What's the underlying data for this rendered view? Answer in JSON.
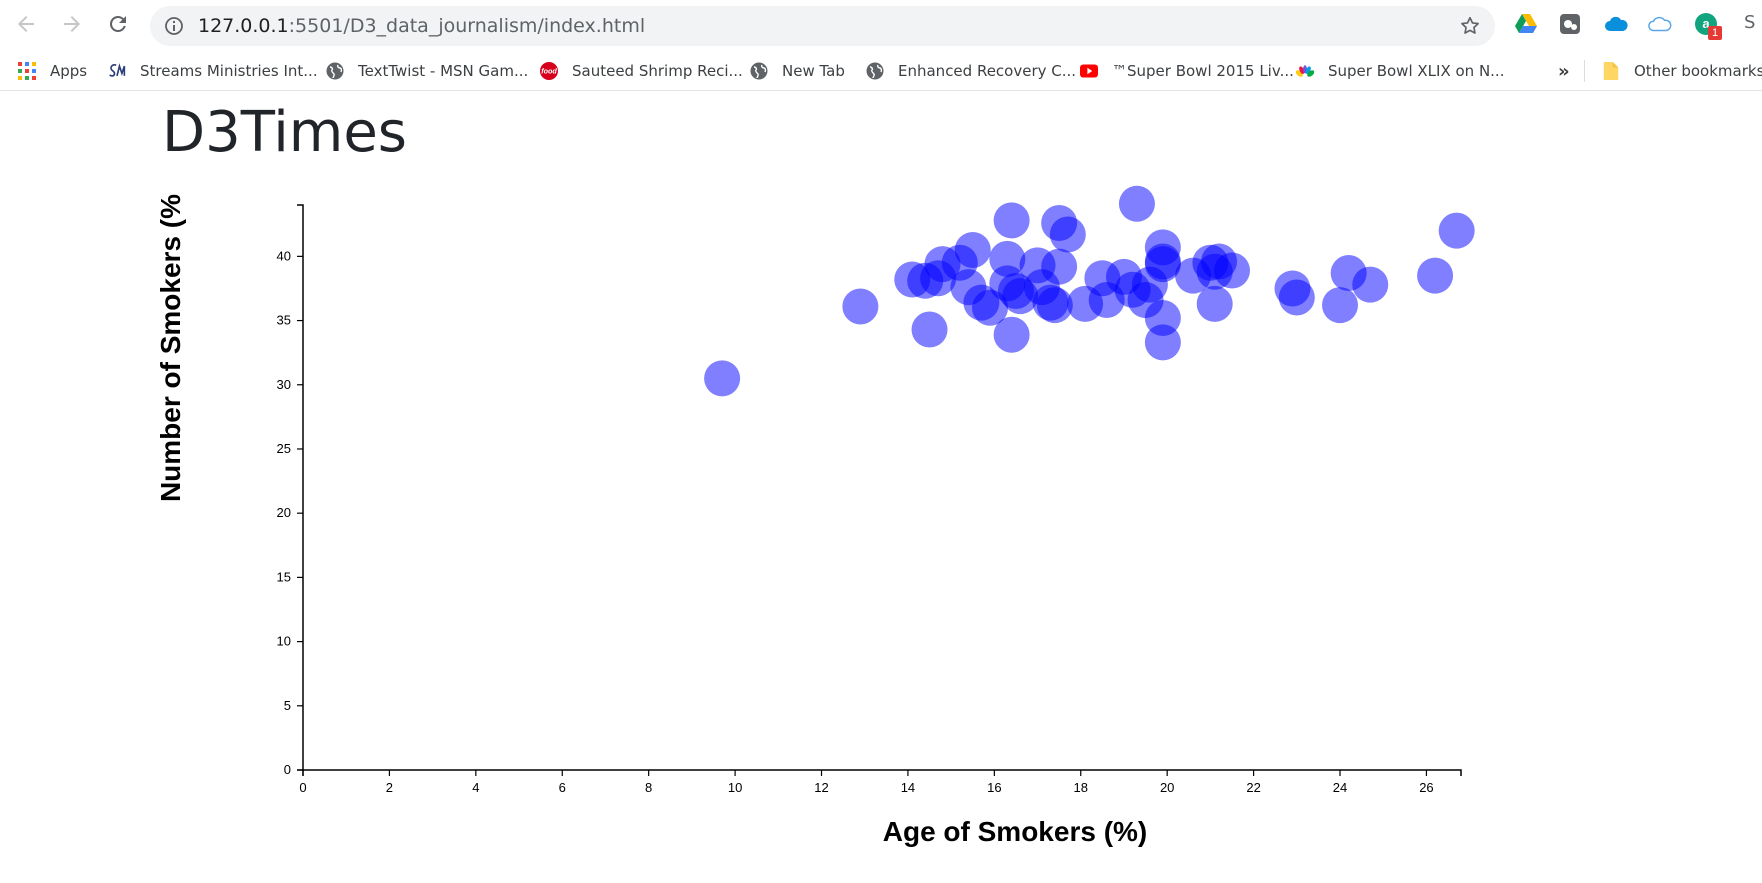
{
  "browser": {
    "url_host": "127.0.0.1",
    "url_path": ":5501/D3_data_journalism/index.html",
    "extension_badge": "1",
    "trailing_text": "S"
  },
  "bookmarks": {
    "items": [
      {
        "label": "Apps",
        "icon": "apps-grid-icon"
      },
      {
        "label": "Streams Ministries Int...",
        "icon": "sm-logo-icon"
      },
      {
        "label": "TextTwist - MSN Gam...",
        "icon": "globe-icon"
      },
      {
        "label": "Sauteed Shrimp Reci...",
        "icon": "food-logo-icon"
      },
      {
        "label": "New Tab",
        "icon": "globe-icon"
      },
      {
        "label": "Enhanced Recovery C...",
        "icon": "globe-icon"
      },
      {
        "label": "™Super Bowl 2015 Liv...",
        "icon": "youtube-icon"
      },
      {
        "label": "Super Bowl XLIX on N...",
        "icon": "nbc-peacock-icon"
      }
    ],
    "overflow": "»",
    "other": "Other bookmarks"
  },
  "page": {
    "title": "D3Times"
  },
  "chart_data": {
    "type": "scatter",
    "xlabel": "Age of Smokers (%)",
    "ylabel": "Number of Smokers (%",
    "xlim": [
      0,
      26.8
    ],
    "ylim": [
      0,
      44
    ],
    "x_ticks": [
      0,
      2,
      4,
      6,
      8,
      10,
      12,
      14,
      16,
      18,
      20,
      22,
      24,
      26
    ],
    "y_ticks": [
      0,
      5,
      10,
      15,
      20,
      25,
      30,
      35,
      40
    ],
    "color": "#0000ff",
    "opacity": 0.5,
    "points": [
      {
        "x": 9.7,
        "y": 30.5
      },
      {
        "x": 12.9,
        "y": 36.1
      },
      {
        "x": 14.1,
        "y": 38.2
      },
      {
        "x": 14.4,
        "y": 38.1
      },
      {
        "x": 14.5,
        "y": 34.3
      },
      {
        "x": 14.7,
        "y": 38.3
      },
      {
        "x": 14.8,
        "y": 39.4
      },
      {
        "x": 15.2,
        "y": 39.5
      },
      {
        "x": 15.4,
        "y": 37.6
      },
      {
        "x": 15.5,
        "y": 40.5
      },
      {
        "x": 15.7,
        "y": 36.4
      },
      {
        "x": 15.9,
        "y": 36.0
      },
      {
        "x": 16.3,
        "y": 39.8
      },
      {
        "x": 16.3,
        "y": 37.9
      },
      {
        "x": 16.4,
        "y": 42.8
      },
      {
        "x": 16.4,
        "y": 33.9
      },
      {
        "x": 16.5,
        "y": 37.3
      },
      {
        "x": 16.6,
        "y": 36.9
      },
      {
        "x": 17.0,
        "y": 39.3
      },
      {
        "x": 17.1,
        "y": 37.6
      },
      {
        "x": 17.3,
        "y": 36.4
      },
      {
        "x": 17.4,
        "y": 36.2
      },
      {
        "x": 17.5,
        "y": 39.2
      },
      {
        "x": 17.5,
        "y": 42.6
      },
      {
        "x": 17.7,
        "y": 41.7
      },
      {
        "x": 18.1,
        "y": 36.3
      },
      {
        "x": 18.5,
        "y": 38.3
      },
      {
        "x": 18.6,
        "y": 36.6
      },
      {
        "x": 19.0,
        "y": 38.4
      },
      {
        "x": 19.2,
        "y": 37.4
      },
      {
        "x": 19.3,
        "y": 44.1
      },
      {
        "x": 19.5,
        "y": 36.6
      },
      {
        "x": 19.6,
        "y": 37.8
      },
      {
        "x": 19.9,
        "y": 40.7
      },
      {
        "x": 19.9,
        "y": 39.6
      },
      {
        "x": 19.9,
        "y": 39.4
      },
      {
        "x": 19.9,
        "y": 35.2
      },
      {
        "x": 19.9,
        "y": 33.3
      },
      {
        "x": 20.6,
        "y": 38.5
      },
      {
        "x": 21.0,
        "y": 39.5
      },
      {
        "x": 21.1,
        "y": 38.8
      },
      {
        "x": 21.1,
        "y": 36.3
      },
      {
        "x": 21.2,
        "y": 39.6
      },
      {
        "x": 21.5,
        "y": 38.9
      },
      {
        "x": 22.9,
        "y": 37.5
      },
      {
        "x": 23.0,
        "y": 36.8
      },
      {
        "x": 24.0,
        "y": 36.2
      },
      {
        "x": 24.2,
        "y": 38.7
      },
      {
        "x": 24.7,
        "y": 37.8
      },
      {
        "x": 26.2,
        "y": 38.5
      },
      {
        "x": 26.7,
        "y": 42.0
      }
    ]
  }
}
